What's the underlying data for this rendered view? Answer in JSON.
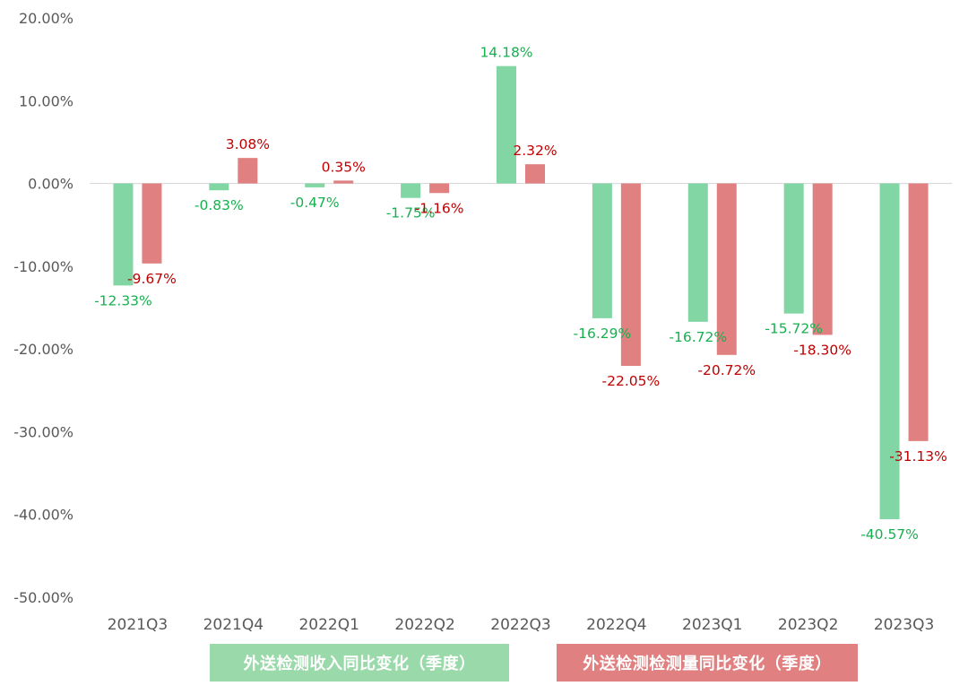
{
  "chart_data": {
    "type": "bar",
    "categories": [
      "2021Q3",
      "2021Q4",
      "2022Q1",
      "2022Q2",
      "2022Q3",
      "2022Q4",
      "2023Q1",
      "2023Q2",
      "2023Q3"
    ],
    "series": [
      {
        "name": "外送检测收入同比变化（季度）",
        "values": [
          -12.33,
          -0.83,
          -0.47,
          -1.75,
          14.18,
          -16.29,
          -16.72,
          -15.72,
          -40.57
        ],
        "labels": [
          "-12.33%",
          "-0.83%",
          "-0.47%",
          "-1.75%",
          "14.18%",
          "-16.29%",
          "-16.72%",
          "-15.72%",
          "-40.57%"
        ],
        "color": "#82d6a4",
        "label_color": "#17b04f"
      },
      {
        "name": "外送检测检测量同比变化（季度）",
        "values": [
          -9.67,
          3.08,
          0.35,
          -1.16,
          2.32,
          -22.05,
          -20.72,
          -18.3,
          -31.13
        ],
        "labels": [
          "-9.67%",
          "3.08%",
          "0.35%",
          "-1.16%",
          "2.32%",
          "-22.05%",
          "-20.72%",
          "-18.30%",
          "-31.13%"
        ],
        "color": "#e08080",
        "label_color": "#c00000"
      }
    ],
    "ylim": [
      -50,
      20
    ],
    "y_ticks": [
      20,
      10,
      0,
      -10,
      -20,
      -30,
      -40,
      -50
    ],
    "y_tick_labels": [
      "20.00%",
      "10.00%",
      "0.00%",
      "-10.00%",
      "-20.00%",
      "-30.00%",
      "-40.00%",
      "-50.00%"
    ],
    "grid": false,
    "legend_position": "bottom",
    "legend_colors": [
      "#9ad9a9",
      "#e08080"
    ]
  }
}
